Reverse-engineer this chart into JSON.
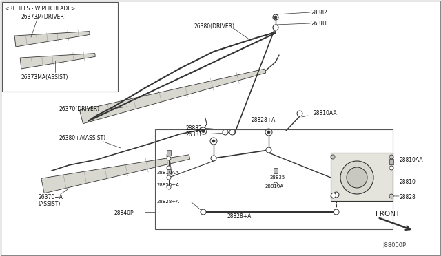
{
  "bg_color": "#ffffff",
  "line_color": "#333333",
  "fig_code": "J88000P",
  "labels": {
    "refills_box_title": "<REFILLS - WIPER BLADE>",
    "driver_refill": "26373M(DRIVER)",
    "assist_refill": "26373MA(ASSIST)",
    "driver_blade": "26370(DRIVER)",
    "assist_blade": "26370+A\n(ASSIST)",
    "driver_arm": "26380(DRIVER)",
    "assist_arm": "26380+A(ASSIST)",
    "p28882_top": "28882",
    "p26381_top": "26381",
    "p28882_mid": "28882",
    "p26381_mid": "26381",
    "p28828A_top": "28828+A",
    "p28810AA_top": "28810AA",
    "p28810AA_mid": "28810AA",
    "p28810AA_bl": "28810AA",
    "p28820A": "28820+A",
    "p28835": "28835",
    "p28810A": "28810A",
    "p28828_right": "28828",
    "p28810": "28810",
    "p28828A_bl": "28828+A",
    "p28828A_bot": "28828+A",
    "p28840P": "28840P",
    "front": "FRONT"
  }
}
